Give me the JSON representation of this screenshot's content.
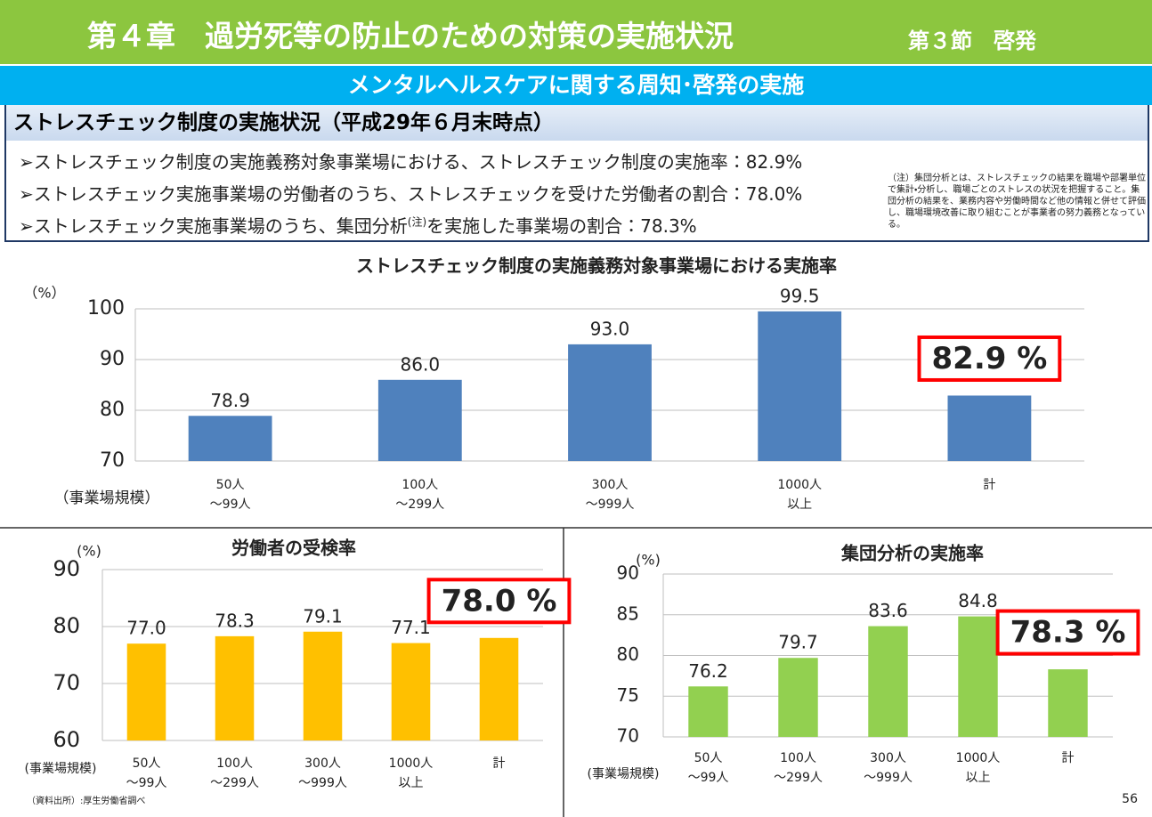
{
  "header": {
    "title": "第４章　過労死等の防止のための対策の実施状況",
    "section": "第３節　啓発"
  },
  "subheader": "メンタルヘルスケアに関する周知･啓発の実施",
  "box": {
    "title": "ストレスチェック制度の実施状況（平成29年６月末時点）",
    "bullets": [
      [
        "ストレスチェック制度の実施義務対象事業場における、ストレスチェック制度の実施率：82.9%"
      ],
      [
        "ストレスチェック実施事業場の労働者のうち、ストレスチェックを受けた労働者の割合：78.0%"
      ],
      [
        "ストレスチェック実施事業場のうち、集団分析",
        "(注)",
        "を実施した事業場の割合：78.3%"
      ]
    ],
    "note": "（注）集団分析とは、ストレスチェックの結果を職場や部署単位で集計・分析し、職場ごとのストレスの状況を把握すること。集団分析の結果を、業務内容や労働時間など他の情報と併せて評価し、職場環境改善に取り組むことが事業者の努力義務となっている。"
  },
  "chart_data": [
    {
      "type": "bar",
      "title": "ストレスチェック制度の実施義務対象事業場における実施率",
      "y_unit": "（%）",
      "x_label": "（事業場規模）",
      "categories": [
        "50人\n～99人",
        "100人\n～299人",
        "300人\n～999人",
        "1000人\n以上",
        "計"
      ],
      "values": [
        78.9,
        86.0,
        93.0,
        99.5,
        82.9
      ],
      "value_labels": [
        "78.9",
        "86.0",
        "93.0",
        "99.5",
        "82.9 %"
      ],
      "color": "#4f81bd",
      "ylim": [
        70,
        100
      ],
      "yticks": [
        70,
        80,
        90,
        100
      ],
      "grid": true,
      "highlight_last": true
    },
    {
      "type": "bar",
      "title": "労働者の受検率",
      "y_unit": "(%)",
      "x_label": "(事業場規模)",
      "categories": [
        "50人\n～99人",
        "100人\n～299人",
        "300人\n～999人",
        "1000人\n以上",
        "計"
      ],
      "values": [
        77.0,
        78.3,
        79.1,
        77.1,
        78.0
      ],
      "value_labels": [
        "77.0",
        "78.3",
        "79.1",
        "77.1",
        "78.0 %"
      ],
      "color": "#ffc000",
      "ylim": [
        60,
        90
      ],
      "yticks": [
        60,
        70,
        80,
        90
      ],
      "grid": true,
      "highlight_last": true
    },
    {
      "type": "bar",
      "title": "集団分析の実施率",
      "y_unit": "(%)",
      "x_label": "(事業場規模)",
      "categories": [
        "50人\n～99人",
        "100人\n～299人",
        "300人\n～999人",
        "1000人\n以上",
        "計"
      ],
      "values": [
        76.2,
        79.7,
        83.6,
        84.8,
        78.3
      ],
      "value_labels": [
        "76.2",
        "79.7",
        "83.6",
        "84.8",
        "78.3 %"
      ],
      "color": "#92d050",
      "ylim": [
        70,
        90
      ],
      "yticks": [
        70,
        75,
        80,
        85,
        90
      ],
      "grid": true,
      "highlight_last": true
    }
  ],
  "source": "（資料出所）:厚生労働省調べ",
  "page_number": "56"
}
